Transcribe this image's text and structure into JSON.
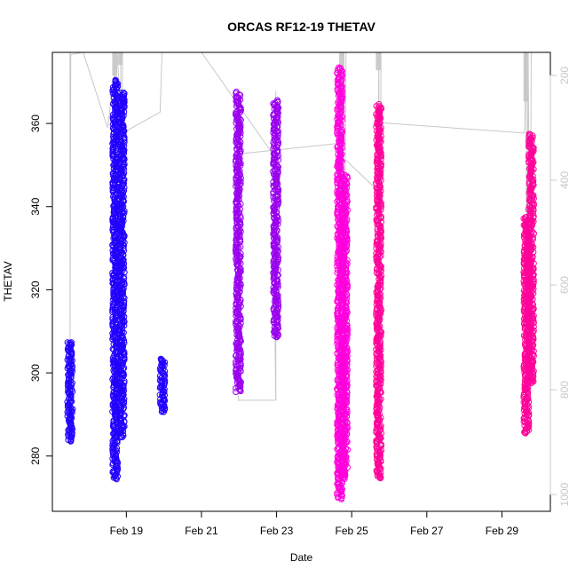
{
  "chart_data": {
    "type": "scatter",
    "title": "ORCAS RF12-19 THETAV",
    "xlabel": "Date",
    "ylabel": "THETAV",
    "x_tick_labels": [
      "Feb 19",
      "Feb 21",
      "Feb 23",
      "Feb 25",
      "Feb 27",
      "Feb 29"
    ],
    "x_tick_dates": [
      19,
      21,
      23,
      25,
      27,
      29
    ],
    "xlim_days": [
      17.03,
      30.29
    ],
    "y_ticks": [
      280,
      300,
      320,
      340,
      360
    ],
    "ylim": [
      266.7,
      377.1
    ],
    "y2_label": "",
    "y2_ticks": [
      200,
      400,
      600,
      800,
      1000
    ],
    "y2_lim": [
      1032,
      156
    ],
    "y2_color": "#c8c8c8",
    "grid": false,
    "marker": "open circle",
    "pressure_trace_color": "#c8c8c8",
    "series": [
      {
        "flight_color": "#2200ff",
        "clusters": [
          {
            "x": 17.5,
            "ymin": 283.5,
            "ymax": 307.5
          },
          {
            "x": 18.7,
            "ymin": 274.5,
            "ymax": 370.5
          },
          {
            "x": 18.88,
            "ymin": 284.5,
            "ymax": 367.5
          },
          {
            "x": 19.96,
            "ymin": 290.5,
            "ymax": 303.5
          }
        ]
      },
      {
        "flight_color": "#9900ee",
        "clusters": [
          {
            "x": 21.98,
            "ymin": 295.5,
            "ymax": 367.5
          },
          {
            "x": 22.98,
            "ymin": 308.5,
            "ymax": 365.5
          }
        ]
      },
      {
        "flight_color": "#ff00dd",
        "clusters": [
          {
            "x": 24.68,
            "ymin": 269.5,
            "ymax": 373.5
          },
          {
            "x": 24.82,
            "ymin": 274.5,
            "ymax": 347.5
          }
        ]
      },
      {
        "flight_color": "#ff0099",
        "clusters": [
          {
            "x": 25.72,
            "ymin": 274.5,
            "ymax": 364.5
          },
          {
            "x": 29.65,
            "ymin": 285.5,
            "ymax": 337.5
          },
          {
            "x": 29.78,
            "ymin": 297.5,
            "ymax": 357.5
          }
        ]
      }
    ]
  }
}
